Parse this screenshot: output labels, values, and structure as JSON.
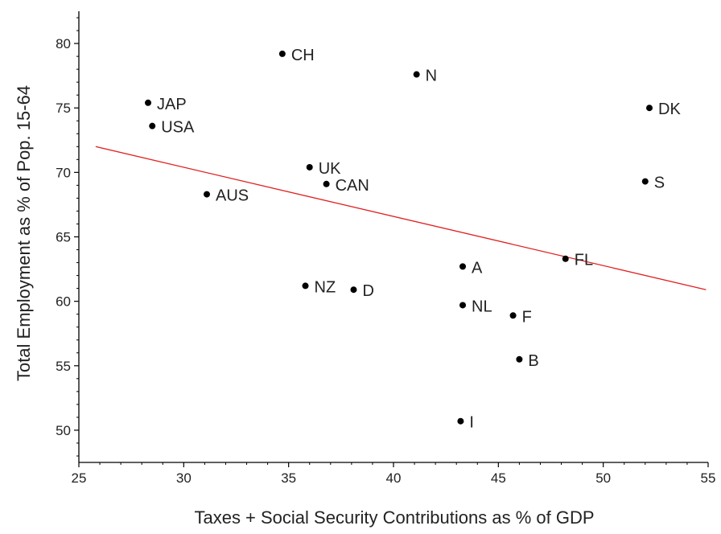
{
  "chart_data": {
    "type": "scatter",
    "title": "",
    "xlabel": "Taxes + Social Security Contributions as % of GDP",
    "ylabel": "Total Employment as % of Pop. 15-64",
    "xlim": [
      25,
      55
    ],
    "ylim": [
      47.5,
      82.5
    ],
    "xticks": [
      25,
      30,
      35,
      40,
      45,
      50,
      55
    ],
    "yticks": [
      50,
      55,
      60,
      65,
      70,
      75,
      80
    ],
    "grid": false,
    "legend": "none",
    "colors": {
      "points": "#000000",
      "trend_line": "#e02020",
      "axes": "#000000"
    },
    "points": [
      {
        "label": "CH",
        "x": 34.7,
        "y": 79.2
      },
      {
        "label": "N",
        "x": 41.1,
        "y": 77.6
      },
      {
        "label": "JAP",
        "x": 28.3,
        "y": 75.4
      },
      {
        "label": "DK",
        "x": 52.2,
        "y": 75.0
      },
      {
        "label": "USA",
        "x": 28.5,
        "y": 73.6
      },
      {
        "label": "UK",
        "x": 36.0,
        "y": 70.4
      },
      {
        "label": "S",
        "x": 52.0,
        "y": 69.3
      },
      {
        "label": "CAN",
        "x": 36.8,
        "y": 69.1
      },
      {
        "label": "AUS",
        "x": 31.1,
        "y": 68.3
      },
      {
        "label": "FL",
        "x": 48.2,
        "y": 63.3
      },
      {
        "label": "A",
        "x": 43.3,
        "y": 62.7
      },
      {
        "label": "NZ",
        "x": 35.8,
        "y": 61.2
      },
      {
        "label": "D",
        "x": 38.1,
        "y": 60.9
      },
      {
        "label": "NL",
        "x": 43.3,
        "y": 59.7
      },
      {
        "label": "F",
        "x": 45.7,
        "y": 58.9
      },
      {
        "label": "B",
        "x": 46.0,
        "y": 55.5
      },
      {
        "label": "I",
        "x": 43.2,
        "y": 50.7
      }
    ],
    "trend_line": {
      "x": [
        25.8,
        54.9
      ],
      "y": [
        72.0,
        60.9
      ]
    }
  }
}
